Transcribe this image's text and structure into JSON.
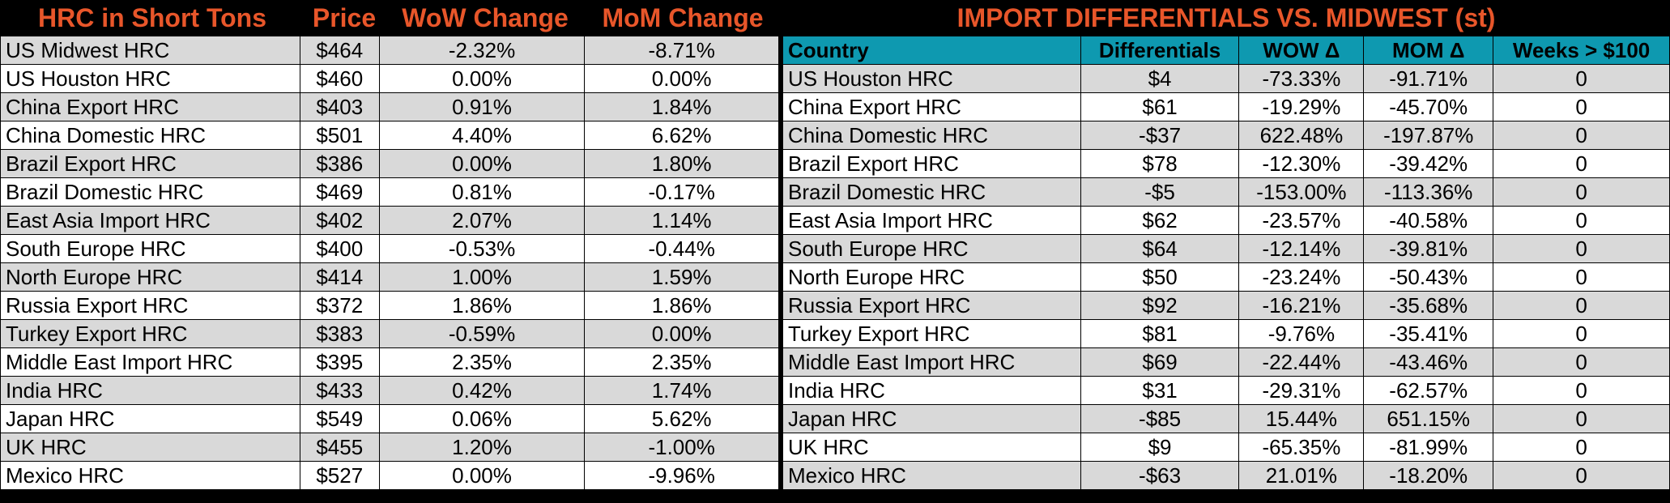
{
  "left_table": {
    "headers": [
      "HRC in Short Tons",
      "Price",
      "WoW Change",
      "MoM Change"
    ],
    "rows": [
      [
        "US Midwest HRC",
        "$464",
        "-2.32%",
        "-8.71%"
      ],
      [
        "US Houston HRC",
        "$460",
        "0.00%",
        "0.00%"
      ],
      [
        "China Export HRC",
        "$403",
        "0.91%",
        "1.84%"
      ],
      [
        "China Domestic HRC",
        "$501",
        "4.40%",
        "6.62%"
      ],
      [
        "Brazil Export HRC",
        "$386",
        "0.00%",
        "1.80%"
      ],
      [
        "Brazil Domestic HRC",
        "$469",
        "0.81%",
        "-0.17%"
      ],
      [
        "East Asia Import HRC",
        "$402",
        "2.07%",
        "1.14%"
      ],
      [
        "South Europe HRC",
        "$400",
        "-0.53%",
        "-0.44%"
      ],
      [
        "North Europe HRC",
        "$414",
        "1.00%",
        "1.59%"
      ],
      [
        "Russia Export HRC",
        "$372",
        "1.86%",
        "1.86%"
      ],
      [
        "Turkey Export HRC",
        "$383",
        "-0.59%",
        "0.00%"
      ],
      [
        "Middle East Import HRC",
        "$395",
        "2.35%",
        "2.35%"
      ],
      [
        "India HRC",
        "$433",
        "0.42%",
        "1.74%"
      ],
      [
        "Japan HRC",
        "$549",
        "0.06%",
        "5.62%"
      ],
      [
        "UK HRC",
        "$455",
        "1.20%",
        "-1.00%"
      ],
      [
        "Mexico HRC",
        "$527",
        "0.00%",
        "-9.96%"
      ]
    ]
  },
  "right_table": {
    "title": "IMPORT DIFFERENTIALS VS. MIDWEST (st)",
    "headers": [
      "Country",
      "Differentials",
      "WOW Δ",
      "MOM Δ",
      "Weeks > $100"
    ],
    "rows": [
      [
        "US Houston HRC",
        "$4",
        "-73.33%",
        "-91.71%",
        "0"
      ],
      [
        "China Export HRC",
        "$61",
        "-19.29%",
        "-45.70%",
        "0"
      ],
      [
        "China Domestic HRC",
        "-$37",
        "622.48%",
        "-197.87%",
        "0"
      ],
      [
        "Brazil Export HRC",
        "$78",
        "-12.30%",
        "-39.42%",
        "0"
      ],
      [
        "Brazil Domestic HRC",
        "-$5",
        "-153.00%",
        "-113.36%",
        "0"
      ],
      [
        "East Asia Import HRC",
        "$62",
        "-23.57%",
        "-40.58%",
        "0"
      ],
      [
        "South Europe HRC",
        "$64",
        "-12.14%",
        "-39.81%",
        "0"
      ],
      [
        "North Europe HRC",
        "$50",
        "-23.24%",
        "-50.43%",
        "0"
      ],
      [
        "Russia Export HRC",
        "$92",
        "-16.21%",
        "-35.68%",
        "0"
      ],
      [
        "Turkey Export HRC",
        "$81",
        "-9.76%",
        "-35.41%",
        "0"
      ],
      [
        "Middle East Import HRC",
        "$69",
        "-22.44%",
        "-43.46%",
        "0"
      ],
      [
        "India HRC",
        "$31",
        "-29.31%",
        "-62.57%",
        "0"
      ],
      [
        "Japan HRC",
        "-$85",
        "15.44%",
        "651.15%",
        "0"
      ],
      [
        "UK HRC",
        "$9",
        "-65.35%",
        "-81.99%",
        "0"
      ],
      [
        "Mexico HRC",
        "-$63",
        "21.01%",
        "-18.20%",
        "0"
      ]
    ]
  },
  "colors": {
    "title_orange": "#e8562a",
    "header_teal": "#0e99b0",
    "row_gray": "#d9d9d9",
    "row_white": "#ffffff"
  }
}
